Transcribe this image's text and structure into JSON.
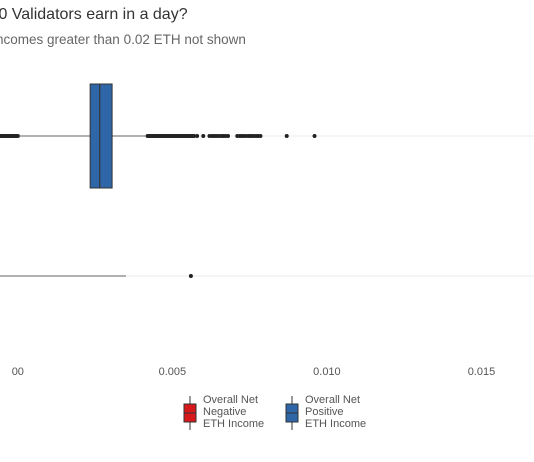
{
  "chart_data": {
    "type": "boxplot",
    "orientation": "horizontal",
    "title": ".0 Validators earn in a day?",
    "subtitle": "ncomes greater than 0.02 ETH not shown",
    "xlim": [
      -0.0009,
      0.0167
    ],
    "x_ticks": [
      {
        "value": 0.0,
        "label": "00"
      },
      {
        "value": 0.005,
        "label": "0.005"
      },
      {
        "value": 0.01,
        "label": "0.010"
      },
      {
        "value": 0.015,
        "label": "0.015"
      }
    ],
    "grid": "horizontal-major",
    "legend_position": "bottom",
    "series": [
      {
        "name": "Overall Net Positive ETH Income",
        "color": "#2f66a8",
        "row": 1,
        "whisker_low": -0.0009,
        "q1": 0.00234,
        "median": 0.00265,
        "q3": 0.00305,
        "whisker_high": 0.0042,
        "outliers_low": [
          -0.0009,
          -0.00085,
          -0.0008,
          -0.00075,
          -0.0007,
          -0.00065,
          -0.0006,
          -0.00055,
          -0.0005,
          -0.00045,
          -0.0004,
          -0.00035,
          -0.0003,
          -0.00025,
          -0.0002,
          -0.00015,
          -0.0001,
          -5e-05,
          0.0
        ],
        "outliers_high": [
          0.0042,
          0.00425,
          0.0043,
          0.00435,
          0.0044,
          0.00445,
          0.0045,
          0.00455,
          0.0046,
          0.00465,
          0.0047,
          0.00475,
          0.0048,
          0.00485,
          0.0049,
          0.00495,
          0.005,
          0.00505,
          0.0051,
          0.00515,
          0.0052,
          0.00525,
          0.0053,
          0.00535,
          0.0054,
          0.00545,
          0.0055,
          0.00555,
          0.0056,
          0.00565,
          0.0057,
          0.0058,
          0.006,
          0.0062,
          0.00628,
          0.00635,
          0.00642,
          0.0065,
          0.00658,
          0.00665,
          0.00672,
          0.0068,
          0.0071,
          0.00718,
          0.00725,
          0.00732,
          0.0074,
          0.00748,
          0.00755,
          0.00762,
          0.0077,
          0.00777,
          0.00785,
          0.0087,
          0.0096
        ]
      },
      {
        "name": "Overall Net Negative ETH Income",
        "color": "#d7191c",
        "row": 2,
        "whisker_low": -0.0009,
        "q1": -0.0009,
        "median": -0.0009,
        "q3": -0.0009,
        "whisker_high": 0.0035,
        "outliers_low": [],
        "outliers_high": [
          0.0056
        ]
      }
    ],
    "legend": [
      {
        "lines": [
          "Overall Net",
          "Negative",
          "ETH Income"
        ],
        "color": "#d7191c"
      },
      {
        "lines": [
          "Overall Net",
          "Positive",
          "ETH Income"
        ],
        "color": "#2f66a8"
      }
    ]
  }
}
